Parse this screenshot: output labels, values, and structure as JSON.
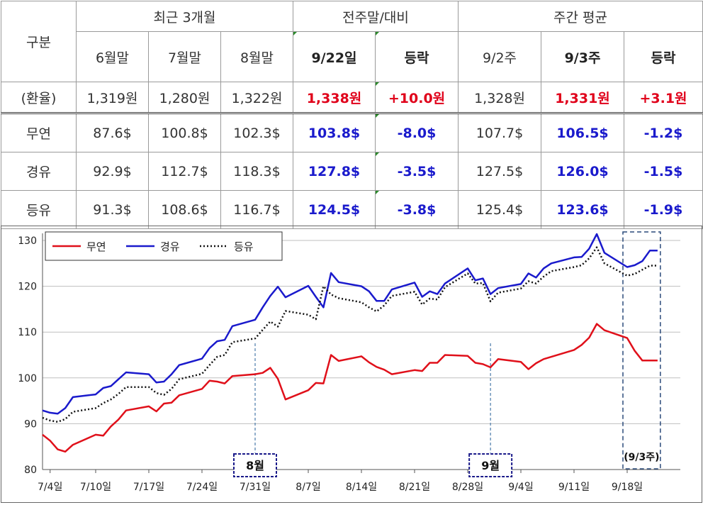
{
  "table": {
    "header_groups": [
      "최근 3개월",
      "전주말/대비",
      "주간 평균"
    ],
    "row_label_header": "구분",
    "subheaders": [
      "6월말",
      "7월말",
      "8월말",
      "9/22일",
      "등락",
      "9/2주",
      "9/3주",
      "등락"
    ],
    "rate_row": {
      "label": "(환율)",
      "values": [
        "1,319원",
        "1,280원",
        "1,322원",
        "1,338원",
        "+10.0원",
        "1,328원",
        "1,331원",
        "+3.1원"
      ]
    },
    "rows": [
      {
        "label": "무연",
        "values": [
          "87.6$",
          "100.8$",
          "102.3$",
          "103.8$",
          "-8.0$",
          "107.7$",
          "106.5$",
          "-1.2$"
        ]
      },
      {
        "label": "경유",
        "values": [
          "92.9$",
          "112.7$",
          "118.3$",
          "127.8$",
          "-3.5$",
          "127.5$",
          "126.0$",
          "-1.5$"
        ]
      },
      {
        "label": "등유",
        "values": [
          "91.3$",
          "108.6$",
          "116.7$",
          "124.5$",
          "-3.8$",
          "125.4$",
          "123.6$",
          "-1.9$"
        ]
      }
    ]
  },
  "chart_data": {
    "type": "line",
    "ylim": [
      80,
      130
    ],
    "y_ticks": [
      80,
      90,
      100,
      110,
      120,
      130
    ],
    "x_range": [
      "2023-07-03",
      "2023-09-25"
    ],
    "x_tick_labels": [
      {
        "date": "2023-07-04",
        "label": "7/4일"
      },
      {
        "date": "2023-07-10",
        "label": "7/10일"
      },
      {
        "date": "2023-07-17",
        "label": "7/17일"
      },
      {
        "date": "2023-07-24",
        "label": "7/24일"
      },
      {
        "date": "2023-07-31",
        "label": "7/31일"
      },
      {
        "date": "2023-08-07",
        "label": "8/7일"
      },
      {
        "date": "2023-08-14",
        "label": "8/14일"
      },
      {
        "date": "2023-08-21",
        "label": "8/21일"
      },
      {
        "date": "2023-08-28",
        "label": "8/28일"
      },
      {
        "date": "2023-09-04",
        "label": "9/4일"
      },
      {
        "date": "2023-09-11",
        "label": "9/11일"
      },
      {
        "date": "2023-09-18",
        "label": "9/18일"
      }
    ],
    "grid": "horizontal",
    "legend_position": "top-left",
    "x": [
      "2023-07-03",
      "2023-07-04",
      "2023-07-05",
      "2023-07-06",
      "2023-07-07",
      "2023-07-10",
      "2023-07-11",
      "2023-07-12",
      "2023-07-13",
      "2023-07-14",
      "2023-07-17",
      "2023-07-18",
      "2023-07-19",
      "2023-07-20",
      "2023-07-21",
      "2023-07-24",
      "2023-07-25",
      "2023-07-26",
      "2023-07-27",
      "2023-07-28",
      "2023-07-31",
      "2023-08-01",
      "2023-08-02",
      "2023-08-03",
      "2023-08-04",
      "2023-08-07",
      "2023-08-08",
      "2023-08-09",
      "2023-08-10",
      "2023-08-11",
      "2023-08-14",
      "2023-08-15",
      "2023-08-16",
      "2023-08-17",
      "2023-08-18",
      "2023-08-21",
      "2023-08-22",
      "2023-08-23",
      "2023-08-24",
      "2023-08-25",
      "2023-08-28",
      "2023-08-29",
      "2023-08-30",
      "2023-08-31",
      "2023-09-01",
      "2023-09-04",
      "2023-09-05",
      "2023-09-06",
      "2023-09-07",
      "2023-09-08",
      "2023-09-11",
      "2023-09-12",
      "2023-09-13",
      "2023-09-14",
      "2023-09-15",
      "2023-09-18",
      "2023-09-19",
      "2023-09-20",
      "2023-09-21",
      "2023-09-22"
    ],
    "series": [
      {
        "name": "무연",
        "color": "#e0101a",
        "style": "solid",
        "values": [
          87.6,
          86.3,
          84.4,
          83.9,
          85.4,
          87.6,
          87.4,
          89.4,
          90.9,
          92.9,
          93.8,
          92.7,
          94.4,
          94.6,
          96.2,
          97.6,
          99.4,
          99.2,
          98.8,
          100.4,
          100.8,
          101.1,
          102.2,
          99.8,
          95.3,
          97.3,
          98.9,
          98.8,
          105.0,
          103.7,
          104.7,
          103.4,
          102.4,
          101.8,
          100.8,
          101.7,
          101.5,
          103.3,
          103.3,
          105.0,
          104.8,
          103.3,
          103.0,
          102.3,
          104.1,
          103.5,
          101.9,
          103.2,
          104.1,
          104.6,
          106.1,
          107.2,
          108.8,
          111.8,
          110.4,
          108.7,
          105.9,
          103.8,
          103.8,
          103.8
        ]
      },
      {
        "name": "경유",
        "color": "#1a1acc",
        "style": "solid",
        "values": [
          92.9,
          92.4,
          92.2,
          93.4,
          95.8,
          96.4,
          97.8,
          98.2,
          99.7,
          101.2,
          100.8,
          99.0,
          99.2,
          100.8,
          102.8,
          104.2,
          106.5,
          108.0,
          108.3,
          111.3,
          112.7,
          115.4,
          117.9,
          119.9,
          117.6,
          120.1,
          117.7,
          115.4,
          122.9,
          120.9,
          120.0,
          118.9,
          116.8,
          116.8,
          119.3,
          120.8,
          117.7,
          118.9,
          118.3,
          120.6,
          123.9,
          121.3,
          121.7,
          118.3,
          119.6,
          120.5,
          122.8,
          121.9,
          123.9,
          125.0,
          126.3,
          126.4,
          128.2,
          131.4,
          127.3,
          124.2,
          124.6,
          125.5,
          127.8,
          127.8
        ]
      },
      {
        "name": "등유",
        "color": "#111111",
        "style": "dotted",
        "values": [
          91.3,
          90.7,
          90.4,
          91.0,
          92.6,
          93.4,
          94.5,
          95.3,
          96.5,
          98.0,
          98.0,
          96.7,
          96.3,
          97.6,
          99.7,
          100.9,
          102.8,
          104.6,
          105.0,
          107.8,
          108.6,
          110.5,
          112.3,
          111.2,
          114.6,
          113.8,
          112.8,
          120.0,
          118.2,
          117.4,
          116.5,
          115.4,
          114.5,
          115.8,
          117.9,
          118.8,
          116.0,
          117.3,
          117.1,
          119.8,
          122.8,
          120.6,
          120.7,
          116.7,
          118.6,
          119.5,
          121.1,
          120.6,
          122.1,
          123.3,
          124.2,
          124.6,
          126.1,
          128.5,
          125.0,
          122.3,
          122.7,
          123.6,
          124.5,
          124.5
        ]
      }
    ],
    "markers": [
      {
        "date": "2023-07-31",
        "label": "8월"
      },
      {
        "date": "2023-08-31",
        "label": "9월"
      }
    ],
    "highlight": {
      "from": "2023-09-18",
      "to": "2023-09-22",
      "label": "(9/3주)"
    }
  }
}
